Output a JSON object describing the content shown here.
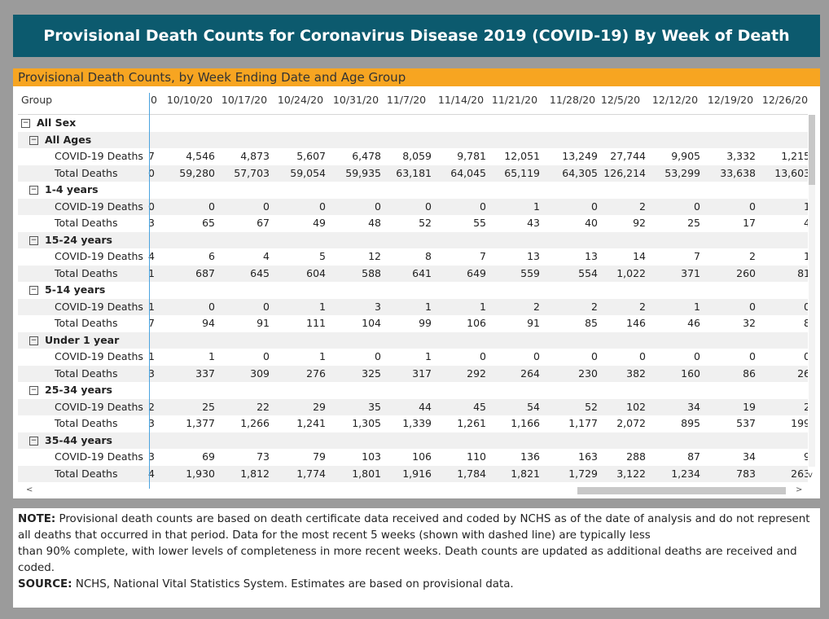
{
  "banner": {
    "title": "Provisional Death Counts for Coronavirus Disease 2019 (COVID-19) By Week of Death"
  },
  "panel": {
    "title": "Provisional Death Counts, by Week Ending Date and Age Group"
  },
  "header": {
    "group_label": "Group",
    "partial": "0",
    "dates": [
      "10/10/20",
      "10/17/20",
      "10/24/20",
      "10/31/20",
      "11/7/20",
      "11/14/20",
      "11/21/20",
      "11/28/20",
      "12/5/20",
      "12/12/20",
      "12/19/20",
      "12/26/20"
    ]
  },
  "rows": [
    {
      "kind": "sex",
      "label": "All Sex",
      "toggle": "−"
    },
    {
      "kind": "grp",
      "label": "All Ages",
      "toggle": "−"
    },
    {
      "kind": "data",
      "label": "COVID-19 Deaths",
      "partial": "7",
      "values": [
        "4,546",
        "4,873",
        "5,607",
        "6,478",
        "8,059",
        "9,781",
        "12,051",
        "13,249",
        "27,744",
        "9,905",
        "3,332",
        "1,215"
      ]
    },
    {
      "kind": "data",
      "label": "Total Deaths",
      "partial": "0",
      "values": [
        "59,280",
        "57,703",
        "59,054",
        "59,935",
        "63,181",
        "64,045",
        "65,119",
        "64,305",
        "126,214",
        "53,299",
        "33,638",
        "13,603"
      ]
    },
    {
      "kind": "grp",
      "label": "1-4 years",
      "toggle": "−"
    },
    {
      "kind": "data",
      "label": "COVID-19 Deaths",
      "partial": "0",
      "values": [
        "0",
        "0",
        "0",
        "0",
        "0",
        "0",
        "1",
        "0",
        "2",
        "0",
        "0",
        "1"
      ]
    },
    {
      "kind": "data",
      "label": "Total Deaths",
      "partial": "3",
      "values": [
        "65",
        "67",
        "49",
        "48",
        "52",
        "55",
        "43",
        "40",
        "92",
        "25",
        "17",
        "4"
      ]
    },
    {
      "kind": "grp",
      "label": "15-24 years",
      "toggle": "−"
    },
    {
      "kind": "data",
      "label": "COVID-19 Deaths",
      "partial": "4",
      "values": [
        "6",
        "4",
        "5",
        "12",
        "8",
        "7",
        "13",
        "13",
        "14",
        "7",
        "2",
        "1"
      ]
    },
    {
      "kind": "data",
      "label": "Total Deaths",
      "partial": "1",
      "values": [
        "687",
        "645",
        "604",
        "588",
        "641",
        "649",
        "559",
        "554",
        "1,022",
        "371",
        "260",
        "81"
      ]
    },
    {
      "kind": "grp",
      "label": "5-14 years",
      "toggle": "−"
    },
    {
      "kind": "data",
      "label": "COVID-19 Deaths",
      "partial": "1",
      "values": [
        "0",
        "0",
        "1",
        "3",
        "1",
        "1",
        "2",
        "2",
        "2",
        "1",
        "0",
        "0"
      ]
    },
    {
      "kind": "data",
      "label": "Total Deaths",
      "partial": "7",
      "values": [
        "94",
        "91",
        "111",
        "104",
        "99",
        "106",
        "91",
        "85",
        "146",
        "46",
        "32",
        "8"
      ]
    },
    {
      "kind": "grp",
      "label": "Under 1 year",
      "toggle": "−"
    },
    {
      "kind": "data",
      "label": "COVID-19 Deaths",
      "partial": "1",
      "values": [
        "1",
        "0",
        "1",
        "0",
        "1",
        "0",
        "0",
        "0",
        "0",
        "0",
        "0",
        "0"
      ]
    },
    {
      "kind": "data",
      "label": "Total Deaths",
      "partial": "3",
      "values": [
        "337",
        "309",
        "276",
        "325",
        "317",
        "292",
        "264",
        "230",
        "382",
        "160",
        "86",
        "26"
      ]
    },
    {
      "kind": "grp",
      "label": "25-34 years",
      "toggle": "−"
    },
    {
      "kind": "data",
      "label": "COVID-19 Deaths",
      "partial": "2",
      "values": [
        "25",
        "22",
        "29",
        "35",
        "44",
        "45",
        "54",
        "52",
        "102",
        "34",
        "19",
        "2"
      ]
    },
    {
      "kind": "data",
      "label": "Total Deaths",
      "partial": "3",
      "values": [
        "1,377",
        "1,266",
        "1,241",
        "1,305",
        "1,339",
        "1,261",
        "1,166",
        "1,177",
        "2,072",
        "895",
        "537",
        "199"
      ]
    },
    {
      "kind": "grp",
      "label": "35-44 years",
      "toggle": "−"
    },
    {
      "kind": "data",
      "label": "COVID-19 Deaths",
      "partial": "3",
      "values": [
        "69",
        "73",
        "79",
        "103",
        "106",
        "110",
        "136",
        "163",
        "288",
        "87",
        "34",
        "9"
      ]
    },
    {
      "kind": "data",
      "label": "Total Deaths",
      "partial": "4",
      "values": [
        "1,930",
        "1,812",
        "1,774",
        "1,801",
        "1,916",
        "1,784",
        "1,821",
        "1,729",
        "3,122",
        "1,234",
        "783",
        "263"
      ]
    }
  ],
  "note": {
    "note_label": "NOTE:",
    "note_text": "Provisional death counts are based on death certificate data received and coded by NCHS as of the date of analysis and do not represent all deaths that occurred in that period. Data for the most recent 5 weeks (shown with dashed line) are typically less",
    "note_text2": "than 90% complete, with lower levels of completeness in more recent weeks.  Death counts are updated as additional deaths are received and coded.",
    "source_label": "SOURCE:",
    "source_text": "NCHS, National Vital Statistics System. Estimates are based on provisional data."
  },
  "scroll": {
    "left_arrow": "<",
    "right_arrow": ">",
    "down_arrow": "v"
  }
}
